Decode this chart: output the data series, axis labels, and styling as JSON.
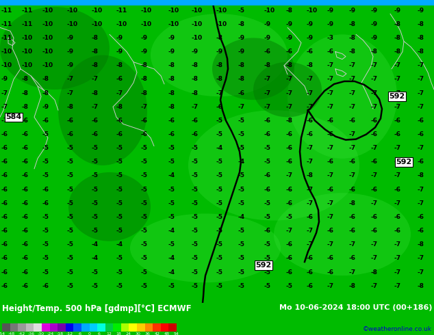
{
  "title_left": "Height/Temp. 500 hPa [gdmp][°C] ECMWF",
  "title_right": "Mo 10-06-2024 18:00 UTC (00+186)",
  "credit": "©weatheronline.co.uk",
  "colorbar_values": [
    -54,
    -48,
    -42,
    -36,
    -30,
    -24,
    -18,
    -12,
    -6,
    0,
    6,
    12,
    18,
    24,
    30,
    36,
    42,
    48,
    54
  ],
  "bg_color": "#00bb00",
  "dark_green": "#009900",
  "darker_green": "#007700",
  "light_green": "#33dd33",
  "top_strip_color": "#00aaff",
  "bottom_bar_color": "#004400",
  "label_color": "#000000",
  "label_fontsize": 6.5,
  "title_fontsize": 8.5,
  "credit_color": "#0000cc",
  "credit_fontsize": 6.5,
  "contour_label_fontsize": 8,
  "colorbar_colors": [
    "#666666",
    "#888888",
    "#aaaaaa",
    "#cccccc",
    "#dddddd",
    "#cc00cc",
    "#aa00cc",
    "#8800aa",
    "#0000ee",
    "#0055ff",
    "#0099ff",
    "#00ccff",
    "#00ffee",
    "#00cc44",
    "#00dd00",
    "#aaff00",
    "#ffff00",
    "#ffcc00",
    "#ff8800",
    "#ff4400",
    "#ff0000",
    "#cc0000"
  ]
}
